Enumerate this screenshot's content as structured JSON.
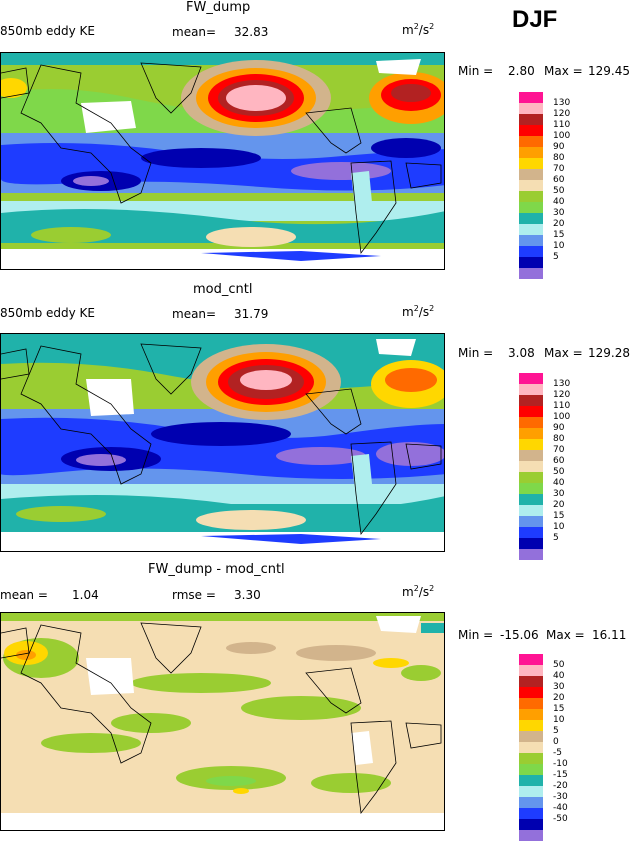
{
  "season": "DJF",
  "panels": [
    {
      "title": "FW_dump",
      "left_label": "850mb eddy KE",
      "stat_label": "mean=",
      "stat_value": "32.83",
      "units_base": "m",
      "units_sup1": "2",
      "units_mid": "/s",
      "units_sup2": "2",
      "min_label": "Min =",
      "min_value": "2.80",
      "max_label": "Max =",
      "max_value": "129.45",
      "colorbar": [
        "130",
        "120",
        "110",
        "100",
        "90",
        "80",
        "70",
        "60",
        "50",
        "40",
        "30",
        "20",
        "15",
        "10",
        "5"
      ]
    },
    {
      "title": "mod_cntl",
      "left_label": "850mb eddy KE",
      "stat_label": "mean=",
      "stat_value": "31.79",
      "units_base": "m",
      "units_sup1": "2",
      "units_mid": "/s",
      "units_sup2": "2",
      "min_label": "Min =",
      "min_value": "3.08",
      "max_label": "Max =",
      "max_value": "129.28",
      "colorbar": [
        "130",
        "120",
        "110",
        "100",
        "90",
        "80",
        "70",
        "60",
        "50",
        "40",
        "30",
        "20",
        "15",
        "10",
        "5"
      ]
    },
    {
      "title": "FW_dump - mod_cntl",
      "left_label": "mean =",
      "left_value": "1.04",
      "stat_label": "rmse =",
      "stat_value": "3.30",
      "units_base": "m",
      "units_sup1": "2",
      "units_mid": "/s",
      "units_sup2": "2",
      "min_label": "Min =",
      "min_value": "-15.06",
      "max_label": "Max =",
      "max_value": "16.11",
      "colorbar": [
        "50",
        "40",
        "30",
        "20",
        "15",
        "10",
        "5",
        "0",
        "-5",
        "-10",
        "-15",
        "-20",
        "-30",
        "-40",
        "-50"
      ]
    }
  ],
  "colors": {
    "scale": [
      "#ff1493",
      "#ffb6c1",
      "#b22222",
      "#ff0000",
      "#ff6a00",
      "#ff9f00",
      "#ffd700",
      "#d2b48c",
      "#f5deb3",
      "#9acd32",
      "#7fd84a",
      "#20b2aa",
      "#afeeee",
      "#6495ed",
      "#1e3cff",
      "#0000b0",
      "#9370db"
    ]
  },
  "chart_data": [
    {
      "type": "heatmap",
      "title": "FW_dump",
      "subtitle": "850mb eddy KE",
      "mean": 32.83,
      "min": 2.8,
      "max": 129.45,
      "units": "m2/s2",
      "levels": [
        5,
        10,
        15,
        20,
        30,
        40,
        50,
        60,
        70,
        80,
        90,
        100,
        110,
        120,
        130
      ]
    },
    {
      "type": "heatmap",
      "title": "mod_cntl",
      "subtitle": "850mb eddy KE",
      "mean": 31.79,
      "min": 3.08,
      "max": 129.28,
      "units": "m2/s2",
      "levels": [
        5,
        10,
        15,
        20,
        30,
        40,
        50,
        60,
        70,
        80,
        90,
        100,
        110,
        120,
        130
      ]
    },
    {
      "type": "heatmap",
      "title": "FW_dump - mod_cntl",
      "mean": 1.04,
      "rmse": 3.3,
      "min": -15.06,
      "max": 16.11,
      "units": "m2/s2",
      "levels": [
        -50,
        -40,
        -30,
        -20,
        -15,
        -10,
        -5,
        0,
        5,
        10,
        15,
        20,
        30,
        40,
        50
      ]
    }
  ]
}
